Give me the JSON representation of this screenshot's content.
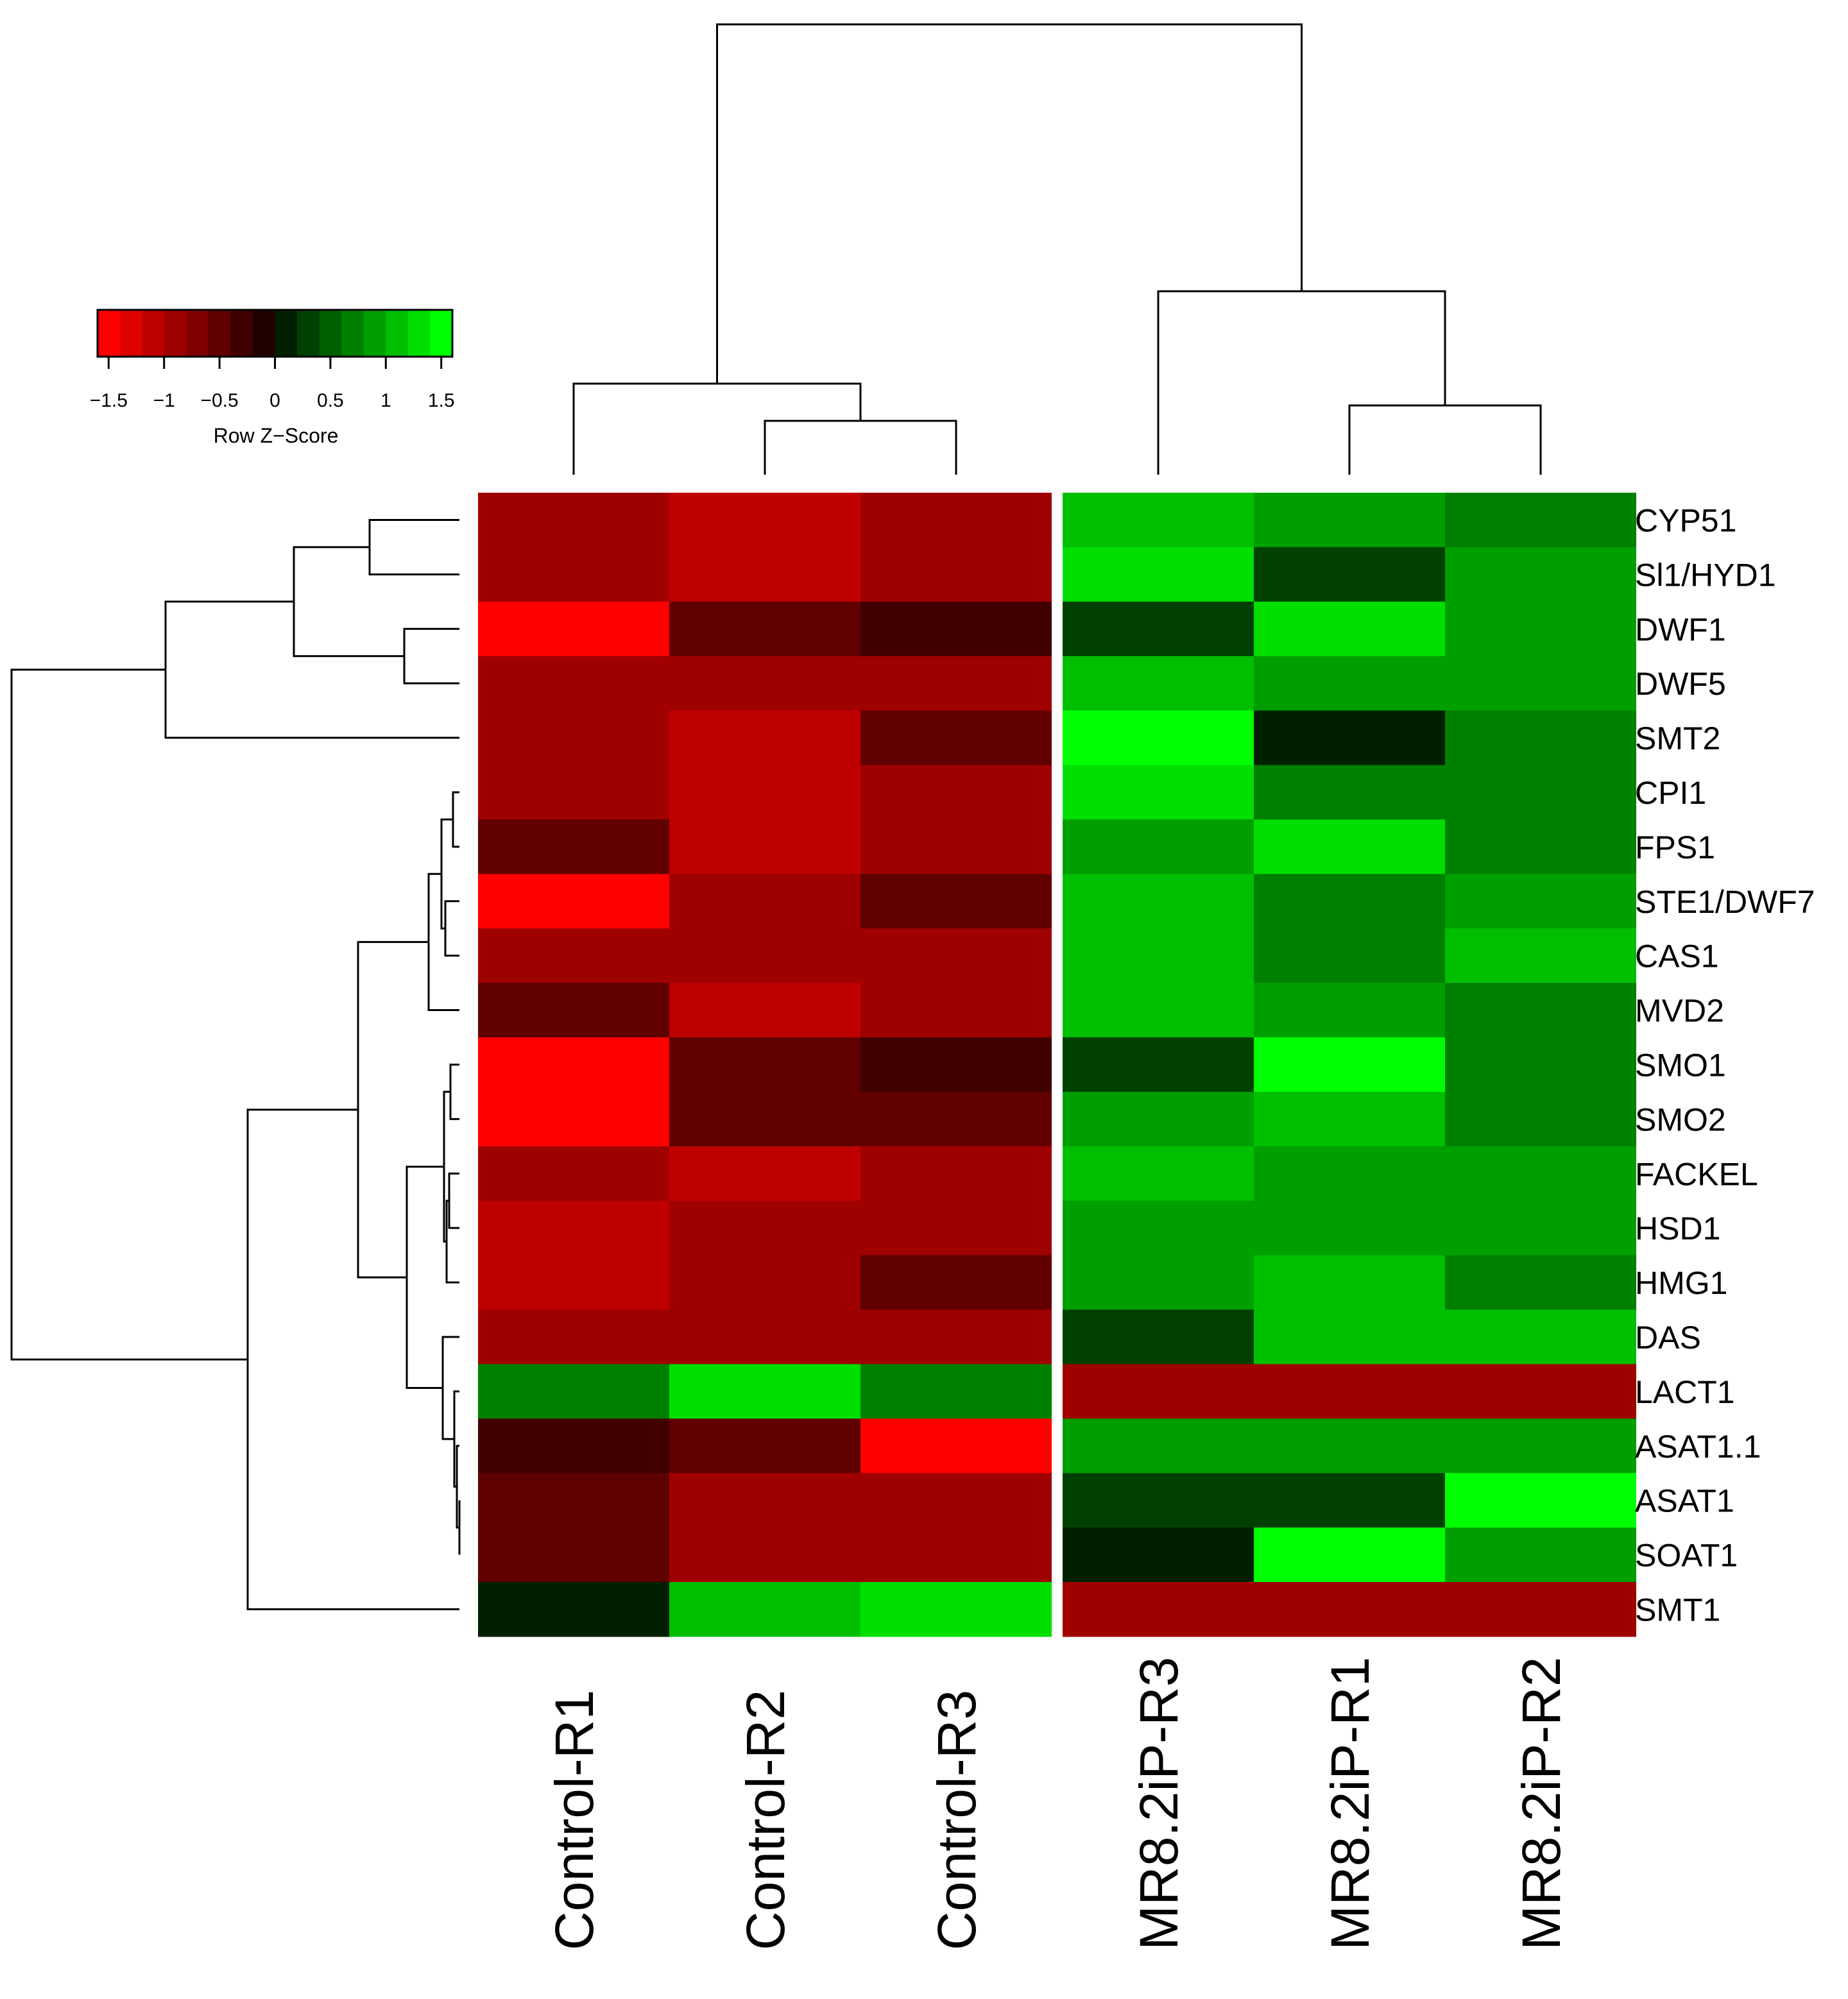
{
  "chart_data": {
    "type": "heatmap",
    "title": "",
    "rows": [
      "CYP51",
      "Sl1/HYD1",
      "DWF1",
      "DWF5",
      "SMT2",
      "CPI1",
      "FPS1",
      "STE1/DWF7",
      "CAS1",
      "MVD2",
      "SMO1",
      "SMO2",
      "FACKEL",
      "HSD1",
      "HMG1",
      "DAS",
      "LACT1",
      "ASAT1.1",
      "ASAT1",
      "SOAT1",
      "SMT1"
    ],
    "columns": [
      "Control-R1",
      "Control-R2",
      "Control-R3",
      "MR8.2iP-R3",
      "MR8.2iP-R1",
      "MR8.2iP-R2"
    ],
    "column_groups": [
      {
        "columns": [
          "Control-R1",
          "Control-R2",
          "Control-R3"
        ]
      },
      {
        "columns": [
          "MR8.2iP-R3",
          "MR8.2iP-R1",
          "MR8.2iP-R2"
        ]
      }
    ],
    "values": [
      [
        -0.9,
        -1.2,
        -0.9,
        1.0,
        0.8,
        0.6
      ],
      [
        -0.9,
        -1.2,
        -0.9,
        1.3,
        0.3,
        0.8
      ],
      [
        -1.5,
        -0.6,
        -0.4,
        0.3,
        1.3,
        0.8
      ],
      [
        -0.9,
        -0.9,
        -0.9,
        1.0,
        0.8,
        0.8
      ],
      [
        -0.9,
        -1.2,
        -0.6,
        1.6,
        0.1,
        0.6
      ],
      [
        -0.9,
        -1.2,
        -0.9,
        1.3,
        0.6,
        0.6
      ],
      [
        -0.6,
        -1.2,
        -0.9,
        0.8,
        1.3,
        0.6
      ],
      [
        -1.5,
        -0.9,
        -0.6,
        1.0,
        0.6,
        0.8
      ],
      [
        -0.9,
        -0.9,
        -0.9,
        1.0,
        0.6,
        1.0
      ],
      [
        -0.6,
        -1.2,
        -0.9,
        1.0,
        0.8,
        0.6
      ],
      [
        -1.5,
        -0.6,
        -0.4,
        0.3,
        1.6,
        0.6
      ],
      [
        -1.5,
        -0.6,
        -0.6,
        0.8,
        1.0,
        0.6
      ],
      [
        -0.9,
        -1.2,
        -0.9,
        1.0,
        0.8,
        0.8
      ],
      [
        -1.2,
        -0.9,
        -0.9,
        0.8,
        0.8,
        0.8
      ],
      [
        -1.2,
        -0.9,
        -0.6,
        0.8,
        1.0,
        0.6
      ],
      [
        -0.9,
        -0.9,
        -0.9,
        0.3,
        1.0,
        1.0
      ],
      [
        0.6,
        1.3,
        0.6,
        -0.9,
        -0.9,
        -0.9
      ],
      [
        -0.4,
        -0.6,
        -1.6,
        0.8,
        0.8,
        0.8
      ],
      [
        -0.6,
        -0.9,
        -0.9,
        0.3,
        0.3,
        1.6
      ],
      [
        -0.6,
        -0.9,
        -0.9,
        0.0,
        1.6,
        0.8
      ],
      [
        0.1,
        1.0,
        1.3,
        -0.9,
        -0.9,
        -0.9
      ]
    ],
    "color_scale": {
      "min": -1.6,
      "max": 1.6,
      "low_color": "#ff0000",
      "mid_color": "#000000",
      "high_color": "#00ff00",
      "bins": 16
    },
    "color_key": {
      "title": "Row Z−Score",
      "ticks": [
        "−1.5",
        "−1",
        "−0.5",
        "0",
        "0.5",
        "1",
        "1.5"
      ],
      "tick_values": [
        -1.5,
        -1,
        -0.5,
        0,
        0.5,
        1,
        1.5
      ],
      "placement": "top-left"
    },
    "column_dendrogram": true,
    "row_dendrogram": true
  }
}
